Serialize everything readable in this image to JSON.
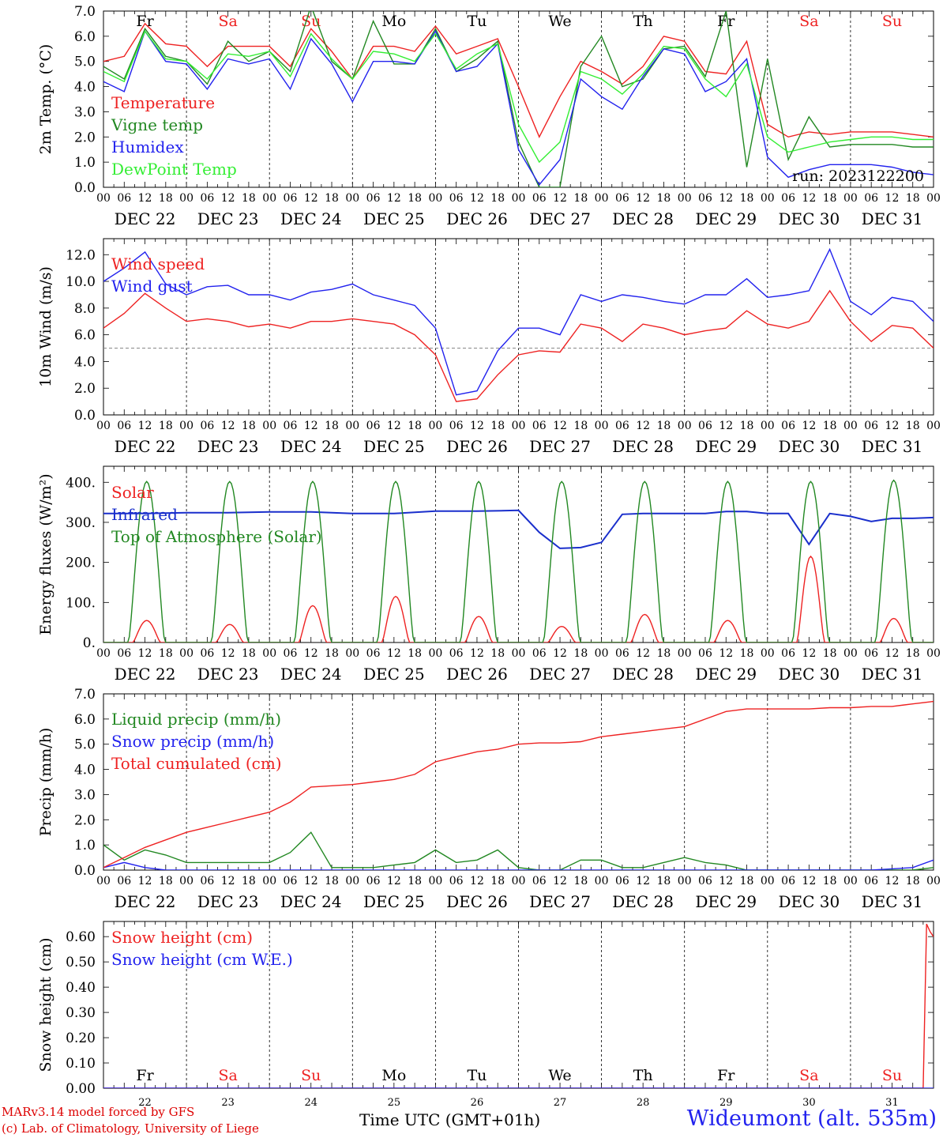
{
  "xlabels_common": {
    "hours": [
      "00",
      "06",
      "12",
      "18"
    ],
    "end_hour": "00",
    "dates": [
      "DEC 22",
      "DEC 23",
      "DEC 24",
      "DEC 25",
      "DEC 26",
      "DEC 27",
      "DEC 28",
      "DEC 29",
      "DEC 30",
      "DEC 31"
    ]
  },
  "chart_data": [
    {
      "type": "line",
      "id": "temperature",
      "ylabel": "2m Temp. (°C)",
      "ylim": [
        0,
        7
      ],
      "yticks": [
        "0.0",
        "1.0",
        "2.0",
        "3.0",
        "4.0",
        "5.0",
        "6.0",
        "7.0"
      ],
      "day_labels": [
        {
          "text": "Fr",
          "color": "#000000"
        },
        {
          "text": "Sa",
          "color": "#ee2222"
        },
        {
          "text": "Su",
          "color": "#ee2222"
        },
        {
          "text": "Mo",
          "color": "#000000"
        },
        {
          "text": "Tu",
          "color": "#000000"
        },
        {
          "text": "We",
          "color": "#000000"
        },
        {
          "text": "Th",
          "color": "#000000"
        },
        {
          "text": "Fr",
          "color": "#000000"
        },
        {
          "text": "Sa",
          "color": "#ee2222"
        },
        {
          "text": "Su",
          "color": "#ee2222"
        }
      ],
      "annotation": "run: 2023122200",
      "x_hours": [
        0,
        6,
        12,
        18,
        24,
        30,
        36,
        42,
        48,
        54,
        60,
        66,
        72,
        78,
        84,
        90,
        96,
        102,
        108,
        114,
        120,
        126,
        132,
        138,
        144,
        150,
        156,
        162,
        168,
        174,
        180,
        186,
        192,
        198,
        204,
        210,
        216,
        222,
        228,
        234,
        240
      ],
      "series": [
        {
          "name": "Temperature",
          "color": "#ee2222",
          "values": [
            5.0,
            5.2,
            6.5,
            5.7,
            5.6,
            4.8,
            5.6,
            5.6,
            5.6,
            4.8,
            6.3,
            5.4,
            4.3,
            5.6,
            5.6,
            5.4,
            6.4,
            5.3,
            5.6,
            5.9,
            4.0,
            2.0,
            3.6,
            5.0,
            4.6,
            4.1,
            4.8,
            6.0,
            5.8,
            4.6,
            4.5,
            5.8,
            2.5,
            2.0,
            2.2,
            2.1,
            2.2,
            2.2,
            2.2,
            2.1,
            2.0
          ]
        },
        {
          "name": "Vigne temp",
          "color": "#228822",
          "values": [
            4.8,
            4.3,
            6.3,
            5.2,
            5.0,
            4.1,
            5.8,
            5.0,
            5.4,
            4.6,
            7.2,
            5.0,
            4.3,
            6.6,
            4.9,
            4.9,
            6.3,
            4.6,
            5.1,
            5.8,
            1.8,
            0.0,
            0.0,
            4.8,
            6.0,
            4.0,
            4.3,
            5.5,
            5.6,
            4.4,
            7.0,
            0.8,
            5.1,
            1.1,
            2.8,
            1.6,
            1.7,
            1.7,
            1.7,
            1.6,
            1.6
          ]
        },
        {
          "name": "Humidex",
          "color": "#2222ee",
          "values": [
            4.2,
            3.8,
            6.2,
            5.0,
            4.9,
            3.9,
            5.1,
            4.9,
            5.1,
            3.9,
            5.9,
            4.9,
            3.4,
            5.0,
            5.0,
            4.9,
            6.2,
            4.6,
            4.8,
            5.7,
            1.5,
            0.1,
            1.1,
            4.3,
            3.6,
            3.1,
            4.4,
            5.5,
            5.3,
            3.8,
            4.2,
            5.1,
            1.2,
            0.4,
            0.7,
            0.9,
            0.9,
            0.9,
            0.8,
            0.6,
            0.5
          ]
        },
        {
          "name": "DewPoint Temp",
          "color": "#33ee33",
          "values": [
            4.6,
            4.2,
            6.2,
            5.1,
            5.0,
            4.3,
            5.3,
            5.2,
            5.4,
            4.4,
            6.1,
            5.1,
            4.3,
            5.4,
            5.3,
            5.0,
            6.1,
            4.7,
            5.3,
            5.7,
            2.5,
            1.0,
            1.8,
            4.6,
            4.3,
            3.7,
            4.5,
            5.6,
            5.5,
            4.3,
            3.6,
            4.9,
            2.0,
            1.4,
            1.6,
            1.8,
            1.9,
            2.0,
            2.0,
            1.9,
            1.9
          ]
        }
      ]
    },
    {
      "type": "line",
      "id": "wind",
      "ylabel": "10m Wind (m/s)",
      "ylim": [
        0,
        13.2
      ],
      "yticks": [
        "0.0",
        "2.0",
        "4.0",
        "6.0",
        "8.0",
        "10.0",
        "12.0"
      ],
      "reference_line": 5.0,
      "x_hours": [
        0,
        6,
        12,
        18,
        24,
        30,
        36,
        42,
        48,
        54,
        60,
        66,
        72,
        78,
        84,
        90,
        96,
        102,
        108,
        114,
        120,
        126,
        132,
        138,
        144,
        150,
        156,
        162,
        168,
        174,
        180,
        186,
        192,
        198,
        204,
        210,
        216,
        222,
        228,
        234,
        240
      ],
      "series": [
        {
          "name": "Wind speed",
          "color": "#ee2222",
          "values": [
            6.5,
            7.6,
            9.1,
            8.0,
            7.0,
            7.2,
            7.0,
            6.6,
            6.8,
            6.5,
            7.0,
            7.0,
            7.2,
            7.0,
            6.8,
            6.0,
            4.5,
            1.0,
            1.2,
            3.0,
            4.5,
            4.8,
            4.7,
            6.8,
            6.5,
            5.5,
            6.8,
            6.5,
            6.0,
            6.3,
            6.5,
            7.8,
            6.8,
            6.5,
            7.0,
            9.3,
            7.0,
            5.5,
            6.7,
            6.5,
            5.0
          ]
        },
        {
          "name": "Wind gust",
          "color": "#2222ee",
          "values": [
            10.0,
            11.0,
            12.2,
            9.8,
            9.0,
            9.6,
            9.7,
            9.0,
            9.0,
            8.6,
            9.2,
            9.4,
            9.8,
            9.0,
            8.6,
            8.2,
            6.5,
            1.5,
            1.8,
            4.8,
            6.5,
            6.5,
            6.0,
            9.0,
            8.5,
            9.0,
            8.8,
            8.5,
            8.3,
            9.0,
            9.0,
            10.2,
            8.8,
            9.0,
            9.3,
            12.4,
            8.5,
            7.5,
            8.8,
            8.5,
            7.0
          ]
        }
      ]
    },
    {
      "type": "line",
      "id": "energy",
      "ylabel": "Energy fluxes (W/m²)",
      "ylim": [
        0,
        440
      ],
      "yticks": [
        "0.",
        "100.",
        "200.",
        "300.",
        "400."
      ],
      "series": [
        {
          "name": "Solar",
          "color": "#ee2222",
          "daily_peaks": [
            55,
            45,
            92,
            115,
            65,
            40,
            70,
            55,
            215,
            60
          ]
        },
        {
          "name": "Infrared",
          "color": "#1a2fcc",
          "x_hours": [
            0,
            12,
            24,
            36,
            48,
            60,
            72,
            84,
            96,
            108,
            120,
            126,
            132,
            138,
            144,
            150,
            156,
            162,
            168,
            174,
            180,
            186,
            192,
            198,
            204,
            210,
            216,
            222,
            228,
            234,
            240
          ],
          "values": [
            322,
            322,
            324,
            324,
            326,
            326,
            322,
            322,
            328,
            328,
            330,
            275,
            235,
            237,
            250,
            320,
            322,
            322,
            322,
            322,
            327,
            327,
            322,
            322,
            245,
            322,
            315,
            302,
            310,
            310,
            312
          ]
        },
        {
          "name": "Top of Atmosphere (Solar)",
          "color": "#228822",
          "daily_peaks": [
            402,
            402,
            402,
            402,
            402,
            402,
            402,
            402,
            402,
            405
          ]
        }
      ]
    },
    {
      "type": "line",
      "id": "precip",
      "ylabel": "Precip (mm/h)",
      "ylim": [
        0,
        7
      ],
      "yticks": [
        "0.0",
        "1.0",
        "2.0",
        "3.0",
        "4.0",
        "5.0",
        "6.0",
        "7.0"
      ],
      "x_hours": [
        0,
        6,
        12,
        18,
        24,
        30,
        36,
        42,
        48,
        54,
        60,
        66,
        72,
        78,
        84,
        90,
        96,
        102,
        108,
        114,
        120,
        126,
        132,
        138,
        144,
        150,
        156,
        162,
        168,
        174,
        180,
        186,
        192,
        198,
        204,
        210,
        216,
        222,
        228,
        234,
        240
      ],
      "series": [
        {
          "name": "Liquid precip (mm/h)",
          "color": "#228822",
          "values": [
            1.0,
            0.4,
            0.8,
            0.6,
            0.3,
            0.3,
            0.3,
            0.3,
            0.3,
            0.7,
            1.5,
            0.1,
            0.1,
            0.1,
            0.2,
            0.3,
            0.8,
            0.3,
            0.4,
            0.8,
            0.1,
            0.0,
            0.0,
            0.4,
            0.4,
            0.1,
            0.1,
            0.3,
            0.5,
            0.3,
            0.2,
            0.0,
            0.0,
            0.0,
            0.0,
            0.0,
            0.0,
            0.0,
            0.0,
            0.0,
            0.1
          ]
        },
        {
          "name": "Snow precip (mm/h)",
          "color": "#2222ee",
          "values": [
            0.1,
            0.3,
            0.1,
            0.0,
            0.0,
            0.0,
            0.0,
            0.0,
            0.0,
            0.0,
            0.0,
            0.0,
            0.0,
            0.0,
            0.0,
            0.0,
            0.0,
            0.0,
            0.0,
            0.0,
            0.0,
            0.0,
            0.0,
            0.0,
            0.0,
            0.0,
            0.0,
            0.0,
            0.0,
            0.0,
            0.0,
            0.0,
            0.0,
            0.0,
            0.0,
            0.0,
            0.0,
            0.0,
            0.05,
            0.1,
            0.4
          ]
        },
        {
          "name": "Total cumulated (cm)",
          "color": "#ee2222",
          "values": [
            0.1,
            0.5,
            0.9,
            1.2,
            1.5,
            1.7,
            1.9,
            2.1,
            2.3,
            2.7,
            3.3,
            3.35,
            3.4,
            3.5,
            3.6,
            3.8,
            4.3,
            4.5,
            4.7,
            4.8,
            5.0,
            5.05,
            5.05,
            5.1,
            5.3,
            5.4,
            5.5,
            5.6,
            5.7,
            6.0,
            6.3,
            6.4,
            6.4,
            6.4,
            6.4,
            6.45,
            6.45,
            6.5,
            6.5,
            6.6,
            6.7
          ]
        }
      ]
    },
    {
      "type": "line",
      "id": "snow",
      "ylabel": "Snow height (cm)",
      "ylim": [
        0,
        0.66
      ],
      "yticks": [
        "0.00",
        "0.10",
        "0.20",
        "0.30",
        "0.40",
        "0.50",
        "0.60"
      ],
      "day_labels": [
        {
          "text": "Fr",
          "color": "#000000"
        },
        {
          "text": "Sa",
          "color": "#ee2222"
        },
        {
          "text": "Su",
          "color": "#ee2222"
        },
        {
          "text": "Mo",
          "color": "#000000"
        },
        {
          "text": "Tu",
          "color": "#000000"
        },
        {
          "text": "We",
          "color": "#000000"
        },
        {
          "text": "Th",
          "color": "#000000"
        },
        {
          "text": "Fr",
          "color": "#000000"
        },
        {
          "text": "Sa",
          "color": "#ee2222"
        },
        {
          "text": "Su",
          "color": "#ee2222"
        }
      ],
      "day_numbers": [
        "22",
        "23",
        "24",
        "25",
        "26",
        "27",
        "28",
        "29",
        "30",
        "31"
      ],
      "x_hours": [
        0,
        237,
        238,
        239,
        240
      ],
      "series": [
        {
          "name": "Snow height (cm)",
          "color": "#ee2222",
          "values": [
            0,
            0,
            0.65,
            0.62,
            0.6
          ]
        },
        {
          "name": "Snow height (cm W.E.)",
          "color": "#2222ee",
          "values": [
            0,
            0,
            0,
            0,
            0
          ]
        }
      ]
    }
  ],
  "footer": {
    "credit_line1": "MARv3.14 model forced by GFS",
    "credit_line2": "(c) Lab. of Climatology, University of Liege",
    "xlabel": "Time UTC (GMT+01h)",
    "station": "Wideumont (alt. 535m)"
  }
}
